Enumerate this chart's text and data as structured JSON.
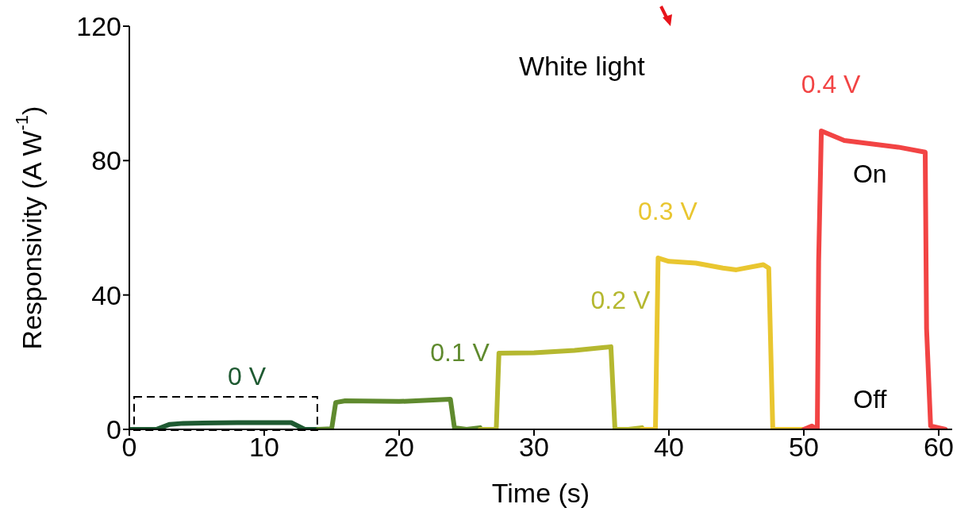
{
  "chart_data": {
    "type": "line",
    "xlabel": "Time (s)",
    "ylabel": "Responsivity (A W$^{-1}$)",
    "xlim": [
      0,
      61
    ],
    "xticks": [
      0,
      10,
      20,
      30,
      40,
      50,
      60
    ],
    "ylim": [
      0,
      120
    ],
    "yticks": [
      0,
      40,
      80,
      120
    ],
    "annotations": [
      "White light",
      "On",
      "Off"
    ],
    "series": [
      {
        "name": "0  V",
        "color": "#1f5a32",
        "x": [
          0,
          2,
          3,
          4,
          8,
          12,
          13,
          14
        ],
        "values": [
          0,
          0,
          1.5,
          1.8,
          2,
          2,
          0,
          0
        ]
      },
      {
        "name": "0.1 V",
        "color": "#5f8a2e",
        "x": [
          14,
          15,
          15.3,
          16,
          20,
          23.8,
          24.1,
          25,
          26
        ],
        "values": [
          0,
          0.2,
          8,
          8.5,
          8.3,
          9,
          0.5,
          0,
          0.5
        ]
      },
      {
        "name": "0.2 V",
        "color": "#b5b830",
        "x": [
          26,
          27.2,
          27.4,
          30,
          33,
          35.7,
          36,
          37,
          38
        ],
        "values": [
          0,
          0,
          22.7,
          22.8,
          23.5,
          24.6,
          0,
          0,
          0.5
        ]
      },
      {
        "name": "0.3 V",
        "color": "#e9c630",
        "x": [
          38,
          39,
          39.2,
          40,
          42,
          44,
          45,
          47,
          47.4,
          47.7,
          49,
          50
        ],
        "values": [
          0,
          0,
          51,
          50,
          49.5,
          48,
          47.5,
          49,
          48,
          0,
          0,
          0
        ]
      },
      {
        "name": "0.4 V",
        "color": "#f24444",
        "x": [
          50,
          50.6,
          51,
          51.1,
          51.3,
          53,
          55,
          57,
          59,
          59.1,
          59.4,
          60.5
        ],
        "values": [
          0,
          1,
          0,
          50,
          88.8,
          86,
          85,
          84,
          82.5,
          30,
          1,
          0
        ]
      }
    ]
  }
}
